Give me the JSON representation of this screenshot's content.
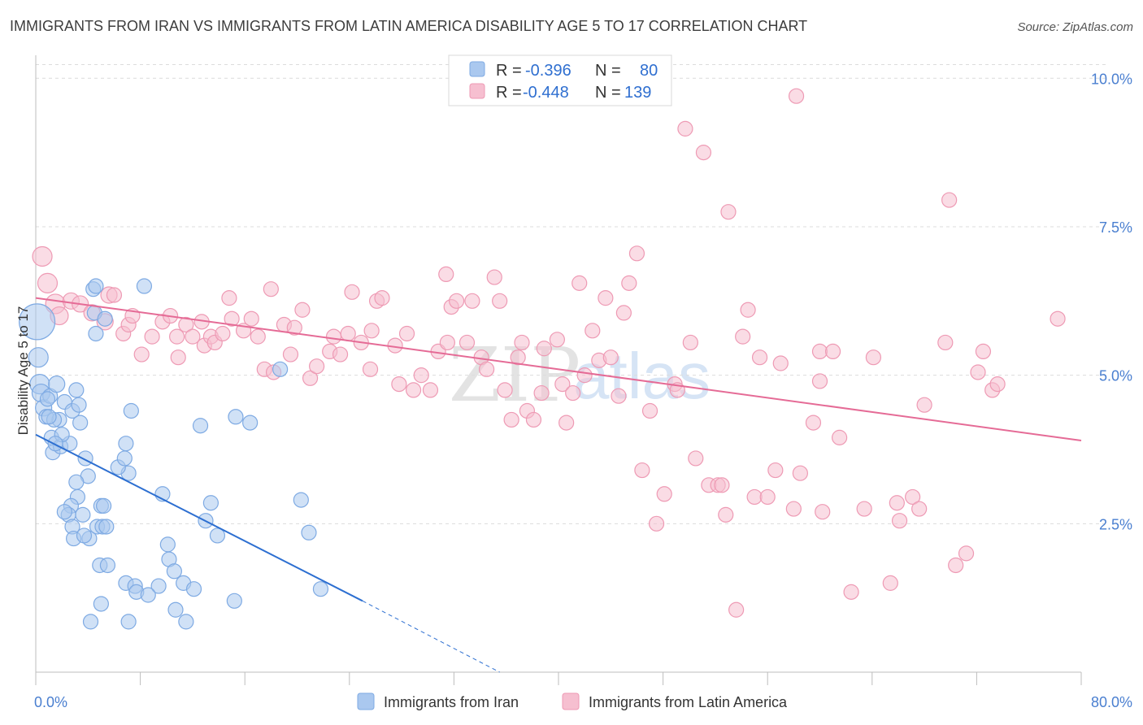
{
  "title": "IMMIGRANTS FROM IRAN VS IMMIGRANTS FROM LATIN AMERICA DISABILITY AGE 5 TO 17 CORRELATION CHART",
  "source": "Source: ZipAtlas.com",
  "watermark": {
    "zip": "ZIP",
    "atlas": "atlas"
  },
  "colors": {
    "iran_fill": "#aac8ef",
    "iran_stroke": "#7eaae3",
    "iran_line": "#2d6fd1",
    "latam_fill": "#f6bfd0",
    "latam_stroke": "#ee9ab4",
    "latam_line": "#e56b96",
    "tick_text": "#4a7fd0",
    "grid": "#dcdcdc"
  },
  "legend_top": {
    "rows": [
      {
        "r_label": "R = ",
        "r_value": "-0.396",
        "n_label": "N = ",
        "n_value": "80"
      },
      {
        "r_label": "R = ",
        "r_value": "-0.448",
        "n_label": "N = ",
        "n_value": "139"
      }
    ]
  },
  "chart_data": {
    "type": "scatter",
    "title": "IMMIGRANTS FROM IRAN VS IMMIGRANTS FROM LATIN AMERICA DISABILITY AGE 5 TO 17 CORRELATION CHART",
    "xlabel": "",
    "ylabel": "Disability Age 5 to 17",
    "xlim": [
      0,
      80
    ],
    "ylim": [
      0,
      10.25
    ],
    "x_tick_labels": [
      "0.0%",
      "80.0%"
    ],
    "y_ticks": [
      2.5,
      5.0,
      7.5,
      10.0
    ],
    "y_tick_labels": [
      "2.5%",
      "5.0%",
      "7.5%",
      "10.0%"
    ],
    "grid": "horizontal dashed",
    "legend_placement": "bottom-center",
    "series": [
      {
        "name": "Immigrants from Iran",
        "r": -0.396,
        "n": 80,
        "trend": {
          "x_start": 0.0,
          "y_start": 4.0,
          "x_end": 25.0,
          "y_end": 1.2,
          "dashed_to_x": 35.5,
          "dashed_to_y": 0.0
        },
        "points": [
          [
            0.1,
            5.9,
            22
          ],
          [
            0.2,
            5.3,
            12
          ],
          [
            0.3,
            4.85,
            12
          ],
          [
            0.4,
            4.7,
            11
          ],
          [
            0.6,
            4.45,
            10
          ],
          [
            0.8,
            4.3,
            9
          ],
          [
            1.1,
            4.65,
            9
          ],
          [
            1.6,
            4.85,
            10
          ],
          [
            2.2,
            4.55,
            9
          ],
          [
            1.8,
            4.25,
            9
          ],
          [
            1.4,
            4.25,
            9
          ],
          [
            1.2,
            3.95,
            9
          ],
          [
            1.3,
            3.7,
            9
          ],
          [
            1.9,
            3.8,
            9
          ],
          [
            2.6,
            3.85,
            9
          ],
          [
            2.8,
            4.4,
            9
          ],
          [
            3.1,
            4.75,
            9
          ],
          [
            3.3,
            4.5,
            9
          ],
          [
            3.4,
            4.2,
            9
          ],
          [
            3.8,
            3.6,
            9
          ],
          [
            4.5,
            6.05,
            9
          ],
          [
            4.4,
            6.45,
            9
          ],
          [
            4.6,
            6.5,
            9
          ],
          [
            4.6,
            5.7,
            9
          ],
          [
            5.3,
            5.95,
            9
          ],
          [
            4.0,
            3.3,
            9
          ],
          [
            3.1,
            3.2,
            9
          ],
          [
            3.2,
            2.95,
            9
          ],
          [
            2.7,
            2.8,
            9
          ],
          [
            2.5,
            2.65,
            9
          ],
          [
            2.2,
            2.7,
            9
          ],
          [
            3.6,
            2.65,
            9
          ],
          [
            2.8,
            2.45,
            9
          ],
          [
            2.9,
            2.25,
            9
          ],
          [
            4.1,
            2.25,
            9
          ],
          [
            4.7,
            2.45,
            9
          ],
          [
            5.1,
            2.45,
            9
          ],
          [
            5.4,
            2.45,
            9
          ],
          [
            5.0,
            2.8,
            9
          ],
          [
            5.2,
            2.8,
            9
          ],
          [
            4.9,
            1.8,
            9
          ],
          [
            5.5,
            1.8,
            9
          ],
          [
            5.0,
            1.15,
            9
          ],
          [
            4.2,
            0.85,
            9
          ],
          [
            7.1,
            0.85,
            9
          ],
          [
            7.1,
            3.35,
            9
          ],
          [
            6.3,
            3.45,
            9
          ],
          [
            6.8,
            3.6,
            9
          ],
          [
            6.9,
            3.85,
            9
          ],
          [
            7.3,
            4.4,
            9
          ],
          [
            8.3,
            6.5,
            9
          ],
          [
            6.9,
            1.5,
            9
          ],
          [
            7.6,
            1.45,
            9
          ],
          [
            7.7,
            1.35,
            9
          ],
          [
            9.4,
            1.45,
            9
          ],
          [
            9.7,
            3.0,
            9
          ],
          [
            10.1,
            2.15,
            9
          ],
          [
            10.2,
            1.9,
            9
          ],
          [
            10.6,
            1.7,
            9
          ],
          [
            11.3,
            1.5,
            9
          ],
          [
            10.7,
            1.05,
            9
          ],
          [
            11.5,
            0.85,
            9
          ],
          [
            12.1,
            1.4,
            9
          ],
          [
            12.6,
            4.15,
            9
          ],
          [
            13.0,
            2.55,
            9
          ],
          [
            13.4,
            2.85,
            9
          ],
          [
            13.9,
            2.3,
            9
          ],
          [
            15.2,
            1.2,
            9
          ],
          [
            15.3,
            4.3,
            9
          ],
          [
            16.4,
            4.2,
            9
          ],
          [
            18.7,
            5.1,
            9
          ],
          [
            20.3,
            2.9,
            9
          ],
          [
            20.9,
            2.35,
            9
          ],
          [
            21.8,
            1.4,
            9
          ],
          [
            1.0,
            4.3,
            9
          ],
          [
            2.0,
            4.0,
            9
          ],
          [
            1.5,
            3.85,
            9
          ],
          [
            0.9,
            4.6,
            9
          ],
          [
            3.7,
            2.3,
            9
          ],
          [
            8.6,
            1.3,
            9
          ]
        ]
      },
      {
        "name": "Immigrants from Latin America",
        "r": -0.448,
        "n": 139,
        "trend": {
          "x_start": 0.0,
          "y_start": 6.3,
          "x_end": 80.0,
          "y_end": 3.9
        },
        "points": [
          [
            0.5,
            7.0,
            12
          ],
          [
            0.9,
            6.55,
            12
          ],
          [
            1.5,
            6.2,
            12
          ],
          [
            1.8,
            6.0,
            11
          ],
          [
            2.7,
            6.25,
            10
          ],
          [
            3.4,
            6.2,
            10
          ],
          [
            4.3,
            6.05,
            10
          ],
          [
            5.3,
            5.9,
            10
          ],
          [
            5.6,
            6.35,
            10
          ],
          [
            6.0,
            6.35,
            9
          ],
          [
            6.7,
            5.7,
            9
          ],
          [
            7.1,
            5.85,
            9
          ],
          [
            7.4,
            6.0,
            9
          ],
          [
            8.1,
            5.35,
            9
          ],
          [
            8.9,
            5.65,
            9
          ],
          [
            9.7,
            5.9,
            9
          ],
          [
            10.3,
            6.0,
            9
          ],
          [
            10.8,
            5.65,
            9
          ],
          [
            10.9,
            5.3,
            9
          ],
          [
            11.5,
            5.85,
            9
          ],
          [
            12.0,
            5.65,
            9
          ],
          [
            12.7,
            5.9,
            9
          ],
          [
            12.9,
            5.5,
            9
          ],
          [
            13.4,
            5.65,
            9
          ],
          [
            13.7,
            5.55,
            9
          ],
          [
            14.3,
            5.7,
            9
          ],
          [
            14.8,
            6.3,
            9
          ],
          [
            15.0,
            5.95,
            9
          ],
          [
            15.9,
            5.75,
            9
          ],
          [
            16.5,
            5.95,
            9
          ],
          [
            17.0,
            5.65,
            9
          ],
          [
            17.5,
            5.1,
            9
          ],
          [
            18.2,
            5.05,
            9
          ],
          [
            19.0,
            5.85,
            9
          ],
          [
            19.5,
            5.35,
            9
          ],
          [
            19.8,
            5.8,
            9
          ],
          [
            18.0,
            6.45,
            9
          ],
          [
            20.4,
            6.1,
            9
          ],
          [
            21.0,
            4.95,
            9
          ],
          [
            21.5,
            5.15,
            9
          ],
          [
            22.5,
            5.4,
            9
          ],
          [
            22.8,
            5.65,
            9
          ],
          [
            23.3,
            5.35,
            9
          ],
          [
            23.9,
            5.7,
            9
          ],
          [
            24.2,
            6.4,
            9
          ],
          [
            24.9,
            5.55,
            9
          ],
          [
            25.6,
            5.1,
            9
          ],
          [
            25.7,
            5.75,
            9
          ],
          [
            26.1,
            6.25,
            9
          ],
          [
            26.5,
            6.3,
            9
          ],
          [
            27.5,
            5.5,
            9
          ],
          [
            27.8,
            4.85,
            9
          ],
          [
            28.4,
            5.7,
            9
          ],
          [
            28.9,
            4.75,
            9
          ],
          [
            29.5,
            5.0,
            9
          ],
          [
            30.2,
            4.75,
            9
          ],
          [
            30.8,
            5.4,
            9
          ],
          [
            31.5,
            5.55,
            9
          ],
          [
            31.4,
            6.7,
            9
          ],
          [
            31.8,
            6.15,
            9
          ],
          [
            32.2,
            6.25,
            9
          ],
          [
            33.0,
            5.55,
            9
          ],
          [
            33.4,
            6.25,
            9
          ],
          [
            34.1,
            5.3,
            9
          ],
          [
            34.5,
            5.1,
            9
          ],
          [
            35.1,
            6.65,
            9
          ],
          [
            35.5,
            6.25,
            9
          ],
          [
            35.9,
            4.75,
            9
          ],
          [
            36.4,
            4.25,
            9
          ],
          [
            36.9,
            5.3,
            9
          ],
          [
            37.2,
            5.55,
            9
          ],
          [
            37.6,
            4.4,
            9
          ],
          [
            38.1,
            4.25,
            9
          ],
          [
            38.9,
            5.45,
            9
          ],
          [
            38.7,
            4.7,
            9
          ],
          [
            39.9,
            5.6,
            9
          ],
          [
            40.3,
            4.85,
            9
          ],
          [
            40.6,
            4.2,
            9
          ],
          [
            41.1,
            4.7,
            9
          ],
          [
            41.6,
            6.55,
            9
          ],
          [
            42.0,
            5.0,
            9
          ],
          [
            42.6,
            5.75,
            9
          ],
          [
            43.1,
            5.25,
            9
          ],
          [
            43.6,
            6.3,
            9
          ],
          [
            44.0,
            5.3,
            9
          ],
          [
            44.6,
            4.65,
            9
          ],
          [
            45.0,
            6.05,
            9
          ],
          [
            45.4,
            6.55,
            9
          ],
          [
            46.0,
            7.05,
            9
          ],
          [
            46.4,
            3.4,
            9
          ],
          [
            47.0,
            4.4,
            9
          ],
          [
            47.5,
            2.5,
            9
          ],
          [
            48.1,
            3.0,
            9
          ],
          [
            48.9,
            4.85,
            9
          ],
          [
            49.1,
            4.75,
            9
          ],
          [
            49.7,
            9.15,
            9
          ],
          [
            50.1,
            5.55,
            9
          ],
          [
            50.5,
            3.6,
            9
          ],
          [
            51.1,
            8.75,
            9
          ],
          [
            51.5,
            3.15,
            9
          ],
          [
            52.2,
            3.15,
            9
          ],
          [
            52.5,
            3.15,
            9
          ],
          [
            53.0,
            7.75,
            9
          ],
          [
            53.6,
            1.05,
            9
          ],
          [
            54.1,
            5.65,
            9
          ],
          [
            54.5,
            6.1,
            9
          ],
          [
            55.0,
            2.95,
            9
          ],
          [
            55.4,
            5.3,
            9
          ],
          [
            56.0,
            2.95,
            9
          ],
          [
            56.6,
            3.4,
            9
          ],
          [
            57.0,
            5.2,
            9
          ],
          [
            58.2,
            9.7,
            9
          ],
          [
            58.0,
            2.75,
            9
          ],
          [
            58.5,
            3.35,
            9
          ],
          [
            59.5,
            4.2,
            9
          ],
          [
            60.0,
            5.4,
            9
          ],
          [
            60.0,
            4.9,
            9
          ],
          [
            61.0,
            5.4,
            9
          ],
          [
            61.5,
            3.95,
            9
          ],
          [
            62.4,
            1.35,
            9
          ],
          [
            63.4,
            2.75,
            9
          ],
          [
            64.1,
            5.3,
            9
          ],
          [
            65.4,
            1.5,
            9
          ],
          [
            65.9,
            2.85,
            9
          ],
          [
            66.1,
            2.55,
            9
          ],
          [
            67.1,
            2.95,
            9
          ],
          [
            67.6,
            2.75,
            9
          ],
          [
            68.0,
            4.5,
            9
          ],
          [
            69.6,
            5.55,
            9
          ],
          [
            69.9,
            7.95,
            9
          ],
          [
            70.4,
            1.8,
            9
          ],
          [
            71.2,
            2.0,
            9
          ],
          [
            72.1,
            5.05,
            9
          ],
          [
            72.5,
            5.4,
            9
          ],
          [
            73.2,
            4.75,
            9
          ],
          [
            73.6,
            4.85,
            9
          ],
          [
            78.2,
            5.95,
            9
          ],
          [
            60.2,
            2.7,
            9
          ],
          [
            52.8,
            2.65,
            9
          ]
        ]
      }
    ]
  },
  "legend_bottom": [
    {
      "label": "Immigrants from Iran"
    },
    {
      "label": "Immigrants from Latin America"
    }
  ]
}
